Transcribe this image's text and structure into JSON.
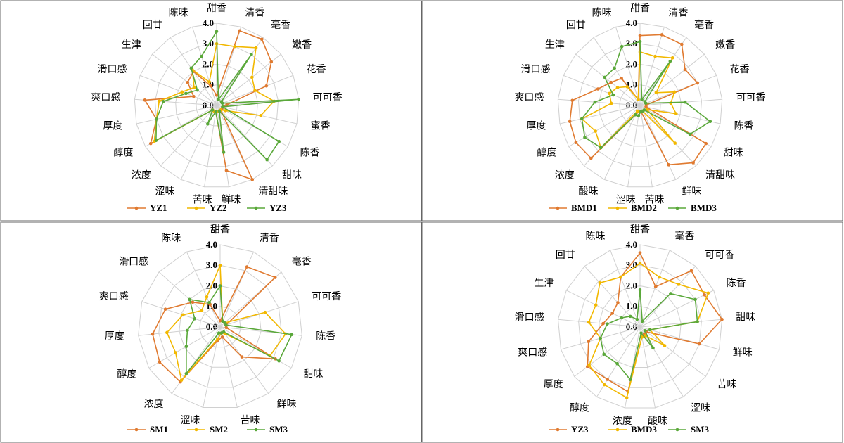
{
  "chart_data": [
    {
      "type": "radar",
      "categories": [
        "甜香",
        "清香",
        "毫香",
        "嫩香",
        "花香",
        "可可香",
        "蜜香",
        "陈香",
        "甜味",
        "清甜味",
        "鲜味",
        "苦味",
        "涩味",
        "浓度",
        "醇度",
        "厚度",
        "爽口感",
        "滑口感",
        "生津",
        "回甘",
        "陈味"
      ],
      "series": [
        {
          "name": "YZ1",
          "color": "#e07a30",
          "values": [
            0.5,
            3.8,
            3.9,
            3.4,
            2.6,
            0.5,
            0.3,
            0.3,
            0.3,
            4.0,
            3.2,
            0.3,
            0.3,
            0.3,
            3.7,
            3.0,
            3.5,
            1.2,
            1.8,
            2.0,
            1.0
          ]
        },
        {
          "name": "YZ2",
          "color": "#f2b800",
          "values": [
            3.0,
            3.0,
            3.4,
            2.2,
            2.0,
            2.8,
            2.2,
            0.5,
            0.3,
            0.3,
            0.3,
            0.3,
            0.3,
            0.3,
            3.5,
            3.0,
            2.8,
            1.8,
            1.4,
            2.1,
            1.2
          ]
        },
        {
          "name": "YZ3",
          "color": "#5aa83a",
          "values": [
            3.6,
            0.3,
            3.0,
            0.3,
            0.3,
            4.0,
            0.3,
            3.5,
            3.6,
            0.3,
            2.3,
            0.3,
            1.0,
            0.3,
            3.4,
            3.0,
            2.6,
            1.6,
            1.2,
            2.2,
            2.5
          ]
        }
      ],
      "rlim": [
        0,
        4
      ],
      "rticks": [
        {
          "value": 0,
          "label": "0.0"
        },
        {
          "value": 1,
          "label": "1.0"
        },
        {
          "value": 2,
          "label": "2.0"
        },
        {
          "value": 3,
          "label": "3.0"
        },
        {
          "value": 4,
          "label": "4.0"
        }
      ]
    },
    {
      "type": "radar",
      "categories": [
        "甜香",
        "清香",
        "毫香",
        "嫩香",
        "花香",
        "可可香",
        "陈香",
        "甜味",
        "清甜味",
        "鲜味",
        "苦味",
        "涩味",
        "酸味",
        "浓度",
        "醇度",
        "厚度",
        "爽口感",
        "滑口感",
        "生津",
        "回甘",
        "陈味"
      ],
      "series": [
        {
          "name": "BMD1",
          "color": "#e07a30",
          "values": [
            3.4,
            3.6,
            3.6,
            2.8,
            3.0,
            0.3,
            0.3,
            3.7,
            3.8,
            3.2,
            0.3,
            0.3,
            0.5,
            3.5,
            3.6,
            3.5,
            3.3,
            2.2,
            1.8,
            1.6,
            0.3
          ]
        },
        {
          "name": "BMD2",
          "color": "#f2b800",
          "values": [
            2.6,
            2.5,
            2.8,
            1.0,
            1.8,
            1.5,
            1.8,
            0.4,
            2.5,
            0.3,
            0.3,
            0.3,
            0.3,
            2.8,
            2.5,
            2.9,
            1.4,
            1.6,
            1.4,
            1.1,
            0.3
          ]
        },
        {
          "name": "BMD3",
          "color": "#5aa83a",
          "values": [
            3.1,
            0.3,
            2.6,
            0.3,
            0.3,
            2.2,
            3.5,
            2.8,
            0.3,
            0.3,
            0.3,
            0.5,
            0.5,
            2.8,
            3.1,
            2.9,
            2.2,
            1.4,
            2.2,
            2.2,
            3.0
          ]
        }
      ],
      "rlim": [
        0,
        4
      ],
      "rticks": [
        {
          "value": 0,
          "label": "0.0"
        },
        {
          "value": 1,
          "label": "1.0"
        },
        {
          "value": 2,
          "label": "2.0"
        },
        {
          "value": 3,
          "label": "3.0"
        },
        {
          "value": 4,
          "label": "4.0"
        }
      ]
    },
    {
      "type": "radar",
      "categories": [
        "甜香",
        "清香",
        "毫香",
        "可可香",
        "陈香",
        "甜味",
        "鲜味",
        "苦味",
        "涩味",
        "浓度",
        "醇度",
        "厚度",
        "爽口感",
        "滑口感",
        "陈味"
      ],
      "series": [
        {
          "name": "SM1",
          "color": "#e07a30",
          "values": [
            0.3,
            3.2,
            3.6,
            0.3,
            0.3,
            3.1,
            1.8,
            0.5,
            0.7,
            3.3,
            3.4,
            3.3,
            2.8,
            1.8,
            1.2
          ]
        },
        {
          "name": "SM2",
          "color": "#f2b800",
          "values": [
            3.0,
            0.3,
            0.3,
            2.3,
            3.2,
            2.8,
            0.4,
            0.3,
            0.6,
            3.2,
            2.5,
            2.6,
            1.9,
            1.2,
            1.6
          ]
        },
        {
          "name": "SM3",
          "color": "#5aa83a",
          "values": [
            2.0,
            0.3,
            0.3,
            0.3,
            3.5,
            3.3,
            0.3,
            0.3,
            0.3,
            2.8,
            1.9,
            1.6,
            1.3,
            2.0,
            1.3
          ]
        }
      ],
      "rlim": [
        0,
        4
      ],
      "rticks": [
        {
          "value": 0,
          "label": "0.0"
        },
        {
          "value": 1,
          "label": "1.0"
        },
        {
          "value": 2,
          "label": "2.0"
        },
        {
          "value": 3,
          "label": "3.0"
        },
        {
          "value": 4,
          "label": "4.0"
        }
      ]
    },
    {
      "type": "radar",
      "categories": [
        "甜香",
        "毫香",
        "可可香",
        "陈香",
        "甜味",
        "鲜味",
        "苦味",
        "涩味",
        "酸味",
        "浓度",
        "醇度",
        "厚度",
        "爽口感",
        "滑口感",
        "生津",
        "回甘",
        "陈味"
      ],
      "series": [
        {
          "name": "YZ3",
          "color": "#e07a30",
          "values": [
            3.6,
            2.1,
            3.7,
            3.5,
            4.0,
            3.0,
            0.4,
            0.4,
            0.5,
            3.2,
            3.0,
            3.2,
            2.6,
            1.8,
            1.5,
            1.6,
            2.6
          ]
        },
        {
          "name": "BMD3",
          "color": "#f2b800",
          "values": [
            3.1,
            2.6,
            2.8,
            3.7,
            2.8,
            0.5,
            1.5,
            0.5,
            0.5,
            3.5,
            3.3,
            3.1,
            2.0,
            2.5,
            2.4,
            2.9,
            2.6
          ]
        },
        {
          "name": "SM3",
          "color": "#5aa83a",
          "values": [
            1.8,
            0.3,
            2.2,
            3.0,
            2.8,
            0.5,
            0.3,
            1.2,
            0.3,
            2.6,
            2.1,
            2.2,
            2.0,
            1.6,
            1.0,
            0.7,
            0.4
          ]
        }
      ],
      "rlim": [
        0,
        4
      ],
      "rticks": [
        {
          "value": 0,
          "label": "0.0"
        },
        {
          "value": 1,
          "label": "1.0"
        },
        {
          "value": 2,
          "label": "2.0"
        },
        {
          "value": 3,
          "label": "3.0"
        },
        {
          "value": 4,
          "label": "4.0"
        }
      ]
    }
  ]
}
